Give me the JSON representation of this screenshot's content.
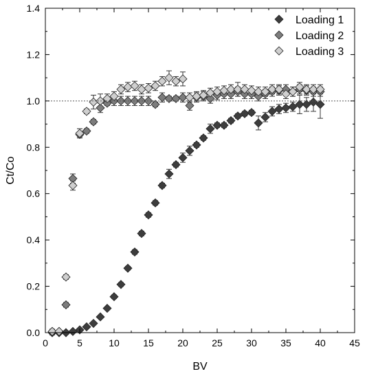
{
  "chart_data": {
    "type": "scatter",
    "xlabel": "BV",
    "ylabel": "Ct/Co",
    "xlim": [
      0,
      45
    ],
    "ylim": [
      0.0,
      1.4
    ],
    "xticks": [
      "0",
      "5",
      "10",
      "15",
      "20",
      "25",
      "30",
      "35",
      "40",
      "45"
    ],
    "yticks": [
      "0.0",
      "0.2",
      "0.4",
      "0.6",
      "0.8",
      "1.0",
      "1.2",
      "1.4"
    ],
    "reference_line_y": 1.0,
    "legend_position": "top-right",
    "grid": false,
    "series": [
      {
        "name": "Loading 1",
        "color": "#3d3d3d",
        "points": [
          [
            1,
            0.0,
            0.01
          ],
          [
            2,
            0.0,
            0.005
          ],
          [
            3,
            0.0,
            0.005
          ],
          [
            4,
            0.005,
            0.005
          ],
          [
            5,
            0.012,
            0.005
          ],
          [
            6,
            0.025,
            0.005
          ],
          [
            7,
            0.04,
            0.005
          ],
          [
            8,
            0.068,
            0.005
          ],
          [
            9,
            0.105,
            0.005
          ],
          [
            10,
            0.155,
            0.008
          ],
          [
            11,
            0.208,
            0.008
          ],
          [
            12,
            0.278,
            0.008
          ],
          [
            13,
            0.348,
            0.01
          ],
          [
            14,
            0.428,
            0.01
          ],
          [
            15,
            0.508,
            0.01
          ],
          [
            16,
            0.56,
            0.01
          ],
          [
            17,
            0.635,
            0.01
          ],
          [
            18,
            0.685,
            0.02
          ],
          [
            19,
            0.725,
            0.01
          ],
          [
            20,
            0.755,
            0.02
          ],
          [
            21,
            0.785,
            0.02
          ],
          [
            22,
            0.81,
            0.01
          ],
          [
            23,
            0.84,
            0.01
          ],
          [
            24,
            0.88,
            0.02
          ],
          [
            25,
            0.895,
            0.01
          ],
          [
            26,
            0.895,
            0.01
          ],
          [
            27,
            0.915,
            0.01
          ],
          [
            28,
            0.935,
            0.01
          ],
          [
            29,
            0.945,
            0.01
          ],
          [
            30,
            0.95,
            0.01
          ],
          [
            31,
            0.905,
            0.03
          ],
          [
            32,
            0.93,
            0.02
          ],
          [
            33,
            0.955,
            0.02
          ],
          [
            34,
            0.965,
            0.02
          ],
          [
            35,
            0.97,
            0.02
          ],
          [
            36,
            0.975,
            0.02
          ],
          [
            37,
            0.985,
            0.04
          ],
          [
            38,
            0.985,
            0.03
          ],
          [
            39,
            0.995,
            0.04
          ],
          [
            40,
            0.985,
            0.06
          ]
        ]
      },
      {
        "name": "Loading 2",
        "color": "#7d7d7d",
        "points": [
          [
            1,
            0.005,
            0.01
          ],
          [
            2,
            0.005,
            0.005
          ],
          [
            3,
            0.12,
            0.01
          ],
          [
            4,
            0.665,
            0.02
          ],
          [
            5,
            0.855,
            0.01
          ],
          [
            6,
            0.87,
            0.01
          ],
          [
            7,
            0.91,
            0.01
          ],
          [
            8,
            0.97,
            0.02
          ],
          [
            9,
            0.99,
            0.01
          ],
          [
            10,
            1.0,
            0.02
          ],
          [
            11,
            1.0,
            0.02
          ],
          [
            12,
            1.0,
            0.02
          ],
          [
            13,
            1.0,
            0.02
          ],
          [
            14,
            1.0,
            0.02
          ],
          [
            15,
            1.0,
            0.02
          ],
          [
            16,
            0.985,
            0.01
          ],
          [
            17,
            1.015,
            0.02
          ],
          [
            18,
            1.01,
            0.01
          ],
          [
            19,
            1.01,
            0.01
          ],
          [
            20,
            1.015,
            0.02
          ],
          [
            21,
            0.98,
            0.02
          ],
          [
            22,
            1.015,
            0.02
          ],
          [
            23,
            1.02,
            0.02
          ],
          [
            24,
            1.01,
            0.02
          ],
          [
            25,
            1.025,
            0.02
          ],
          [
            26,
            1.03,
            0.02
          ],
          [
            27,
            1.03,
            0.02
          ],
          [
            28,
            1.04,
            0.02
          ],
          [
            29,
            1.03,
            0.02
          ],
          [
            30,
            1.03,
            0.02
          ],
          [
            31,
            1.02,
            0.02
          ],
          [
            32,
            1.03,
            0.02
          ],
          [
            33,
            1.04,
            0.02
          ],
          [
            34,
            1.045,
            0.02
          ],
          [
            35,
            1.05,
            0.02
          ],
          [
            36,
            1.04,
            0.02
          ],
          [
            37,
            1.05,
            0.02
          ],
          [
            38,
            1.045,
            0.02
          ],
          [
            39,
            1.04,
            0.02
          ],
          [
            40,
            1.04,
            0.02
          ]
        ]
      },
      {
        "name": "Loading 3",
        "color": "#cfcfcf",
        "points": [
          [
            1,
            0.005,
            0.01
          ],
          [
            2,
            0.005,
            0.005
          ],
          [
            3,
            0.24,
            0.01
          ],
          [
            4,
            0.635,
            0.02
          ],
          [
            5,
            0.86,
            0.02
          ],
          [
            6,
            0.955,
            0.01
          ],
          [
            7,
            0.995,
            0.03
          ],
          [
            8,
            1.0,
            0.03
          ],
          [
            9,
            1.01,
            0.02
          ],
          [
            10,
            1.02,
            0.02
          ],
          [
            11,
            1.05,
            0.02
          ],
          [
            12,
            1.06,
            0.02
          ],
          [
            13,
            1.065,
            0.02
          ],
          [
            14,
            1.05,
            0.02
          ],
          [
            15,
            1.055,
            0.02
          ],
          [
            16,
            1.065,
            0.02
          ],
          [
            17,
            1.085,
            0.02
          ],
          [
            18,
            1.1,
            0.03
          ],
          [
            19,
            1.085,
            0.02
          ],
          [
            20,
            1.095,
            0.03
          ],
          [
            21,
            1.015,
            0.02
          ],
          [
            22,
            1.02,
            0.02
          ],
          [
            23,
            1.025,
            0.02
          ],
          [
            24,
            1.035,
            0.02
          ],
          [
            25,
            1.04,
            0.02
          ],
          [
            26,
            1.045,
            0.02
          ],
          [
            27,
            1.05,
            0.02
          ],
          [
            28,
            1.05,
            0.03
          ],
          [
            29,
            1.05,
            0.02
          ],
          [
            30,
            1.045,
            0.02
          ],
          [
            31,
            1.04,
            0.02
          ],
          [
            32,
            1.04,
            0.02
          ],
          [
            33,
            1.05,
            0.02
          ],
          [
            34,
            1.05,
            0.02
          ],
          [
            35,
            1.03,
            0.02
          ],
          [
            36,
            1.04,
            0.02
          ],
          [
            37,
            1.06,
            0.02
          ],
          [
            38,
            1.05,
            0.02
          ],
          [
            39,
            1.05,
            0.02
          ],
          [
            40,
            1.05,
            0.02
          ]
        ]
      }
    ]
  }
}
